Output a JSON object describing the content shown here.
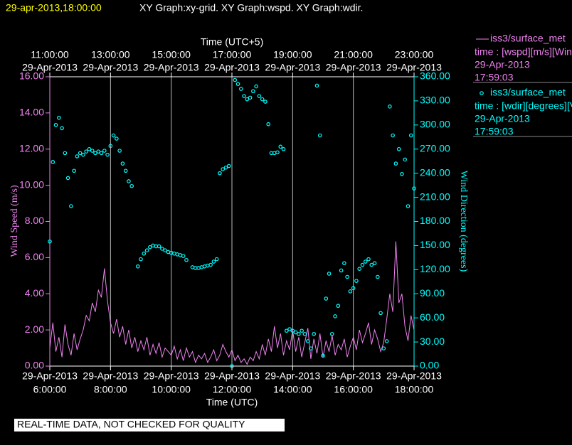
{
  "chart_data": {
    "type": "line",
    "title_time": "29-apr-2013,18:00:00",
    "title": "XY Graph:xy-grid.  XY Graph:wspd.  XY Graph:wdir.",
    "xlabel": "Time (UTC)",
    "x2label": "Time (UTC+5)",
    "ylabel": "Wind Speed (m/s)",
    "y2label": "Wind Direction (degrees)",
    "footer": "REAL-TIME DATA, NOT CHECKED FOR QUALITY",
    "grid": true,
    "xlim": [
      6,
      18
    ],
    "xticks": [
      {
        "value": 6,
        "label": "6:00:00",
        "date": "29-Apr-2013"
      },
      {
        "value": 8,
        "label": "8:00:00",
        "date": "29-Apr-2013"
      },
      {
        "value": 10,
        "label": "10:00:00",
        "date": "29-Apr-2013"
      },
      {
        "value": 12,
        "label": "12:00:00",
        "date": "29-Apr-2013"
      },
      {
        "value": 14,
        "label": "14:00:00",
        "date": "29-Apr-2013"
      },
      {
        "value": 16,
        "label": "16:00:00",
        "date": "29-Apr-2013"
      },
      {
        "value": 18,
        "label": "18:00:00",
        "date": "29-Apr-2013"
      }
    ],
    "x2ticks": [
      {
        "value": 6,
        "label": "11:00:00",
        "date": "29-Apr-2013"
      },
      {
        "value": 8,
        "label": "13:00:00",
        "date": "29-Apr-2013"
      },
      {
        "value": 10,
        "label": "15:00:00",
        "date": "29-Apr-2013"
      },
      {
        "value": 12,
        "label": "17:00:00",
        "date": "29-Apr-2013"
      },
      {
        "value": 14,
        "label": "19:00:00",
        "date": "29-Apr-2013"
      },
      {
        "value": 16,
        "label": "21:00:00",
        "date": "29-Apr-2013"
      },
      {
        "value": 18,
        "label": "23:00:00",
        "date": "29-Apr-2013"
      }
    ],
    "ylim": [
      0,
      16
    ],
    "yticks": [
      {
        "value": 0,
        "label": "0.00"
      },
      {
        "value": 2,
        "label": "2.00"
      },
      {
        "value": 4,
        "label": "4.00"
      },
      {
        "value": 6,
        "label": "6.00"
      },
      {
        "value": 8,
        "label": "8.00"
      },
      {
        "value": 10,
        "label": "10.00"
      },
      {
        "value": 12,
        "label": "12.00"
      },
      {
        "value": 14,
        "label": "14.00"
      },
      {
        "value": 16,
        "label": "16.00"
      }
    ],
    "y2lim": [
      0,
      360
    ],
    "y2ticks": [
      {
        "value": 0,
        "label": "0.00"
      },
      {
        "value": 30,
        "label": "30.00"
      },
      {
        "value": 60,
        "label": "60.00"
      },
      {
        "value": 90,
        "label": "90.00"
      },
      {
        "value": 120,
        "label": "120.00"
      },
      {
        "value": 150,
        "label": "150.00"
      },
      {
        "value": 180,
        "label": "180.00"
      },
      {
        "value": 210,
        "label": "210.00"
      },
      {
        "value": 240,
        "label": "240.00"
      },
      {
        "value": 270,
        "label": "270.00"
      },
      {
        "value": 300,
        "label": "300.00"
      },
      {
        "value": 330,
        "label": "330.00"
      },
      {
        "value": 360,
        "label": "360.00"
      }
    ],
    "x": [
      6.0,
      6.1,
      6.2,
      6.3,
      6.4,
      6.5,
      6.6,
      6.7,
      6.8,
      6.9,
      7.0,
      7.1,
      7.2,
      7.3,
      7.4,
      7.5,
      7.6,
      7.7,
      7.8,
      7.9,
      8.0,
      8.1,
      8.2,
      8.3,
      8.4,
      8.5,
      8.6,
      8.7,
      8.8,
      8.9,
      9.0,
      9.1,
      9.2,
      9.3,
      9.4,
      9.5,
      9.6,
      9.7,
      9.8,
      9.9,
      10.0,
      10.1,
      10.2,
      10.3,
      10.4,
      10.5,
      10.6,
      10.7,
      10.8,
      10.9,
      11.0,
      11.1,
      11.2,
      11.3,
      11.4,
      11.5,
      11.6,
      11.7,
      11.8,
      11.9,
      12.0,
      12.1,
      12.2,
      12.3,
      12.4,
      12.5,
      12.6,
      12.7,
      12.8,
      12.9,
      13.0,
      13.1,
      13.2,
      13.3,
      13.4,
      13.5,
      13.6,
      13.7,
      13.8,
      13.9,
      14.0,
      14.1,
      14.2,
      14.3,
      14.4,
      14.5,
      14.6,
      14.7,
      14.8,
      14.9,
      15.0,
      15.1,
      15.2,
      15.3,
      15.4,
      15.5,
      15.6,
      15.7,
      15.8,
      15.9,
      16.0,
      16.1,
      16.2,
      16.3,
      16.4,
      16.5,
      16.6,
      16.7,
      16.8,
      16.9,
      17.0,
      17.1,
      17.2,
      17.3,
      17.4,
      17.5,
      17.6,
      17.7,
      17.8,
      17.9,
      18.0
    ],
    "series": [
      {
        "name": "iss3/surface_met",
        "type": "line",
        "color": "#ee82ee",
        "axis": "y",
        "legend_text": [
          "time : [wspd][m/s][Win",
          "29-Apr-2013",
          "17:59:03"
        ],
        "values": [
          1.0,
          2.4,
          0.8,
          1.6,
          0.5,
          2.3,
          1.2,
          0.6,
          1.8,
          0.9,
          1.5,
          2.0,
          2.8,
          2.5,
          3.5,
          3.0,
          4.2,
          3.8,
          5.4,
          3.6,
          2.4,
          1.8,
          2.6,
          1.6,
          2.2,
          1.2,
          2.0,
          1.0,
          1.6,
          0.8,
          1.4,
          0.9,
          1.6,
          0.6,
          1.2,
          0.7,
          1.3,
          0.5,
          1.0,
          0.8,
          0.6,
          1.1,
          0.4,
          0.9,
          0.3,
          1.0,
          0.5,
          0.8,
          0.2,
          0.6,
          0.4,
          0.7,
          0.2,
          0.5,
          0.9,
          0.3,
          0.6,
          1.2,
          0.8,
          0.5,
          0.9,
          0.3,
          0.6,
          0.2,
          0.4,
          0.1,
          0.5,
          0.3,
          0.8,
          0.4,
          1.2,
          0.6,
          1.5,
          0.8,
          2.2,
          1.0,
          1.8,
          0.6,
          1.4,
          0.9,
          2.0,
          0.8,
          1.6,
          0.5,
          1.3,
          2.1,
          0.4,
          1.5,
          0.7,
          1.8,
          0.5,
          1.4,
          0.8,
          1.7,
          0.6,
          1.2,
          0.9,
          1.5,
          0.5,
          1.1,
          1.6,
          0.9,
          2.0,
          1.3,
          1.8,
          2.4,
          1.2,
          2.0,
          1.5,
          0.8,
          1.3,
          2.6,
          4.0,
          3.0,
          6.9,
          3.5,
          4.0,
          2.2,
          1.4,
          2.8,
          2.0
        ]
      },
      {
        "name": "iss3/surface_met",
        "type": "scatter",
        "color": "#00ffff",
        "axis": "y2",
        "legend_text": [
          "time : [wdir][degrees][V",
          "29-Apr-2013",
          "17:59:03"
        ],
        "values": [
          155,
          254,
          300,
          309,
          296,
          265,
          234,
          199,
          243,
          261,
          265,
          263,
          267,
          270,
          268,
          265,
          267,
          265,
          268,
          263,
          274,
          287,
          283,
          268,
          252,
          243,
          230,
          224,
          null,
          124,
          133,
          140,
          144,
          148,
          150,
          149,
          149,
          146,
          144,
          142,
          141,
          140,
          139,
          138,
          137,
          132,
          null,
          123,
          122,
          122,
          123,
          124,
          125,
          126,
          130,
          133,
          240,
          245,
          247,
          249,
          0,
          356,
          351,
          345,
          336,
          332,
          334,
          342,
          348,
          336,
          332,
          329,
          301,
          265,
          265,
          266,
          273,
          270,
          44,
          46,
          44,
          42,
          40,
          44,
          40,
          31,
          22,
          40,
          349,
          287,
          13,
          84,
          115,
          40,
          62,
          75,
          119,
          128,
          111,
          93,
          97,
          106,
          121,
          126,
          130,
          133,
          126,
          128,
          111,
          66,
          22,
          31,
          323,
          287,
          252,
          270,
          239,
          257,
          199,
          287,
          221
        ]
      }
    ]
  }
}
